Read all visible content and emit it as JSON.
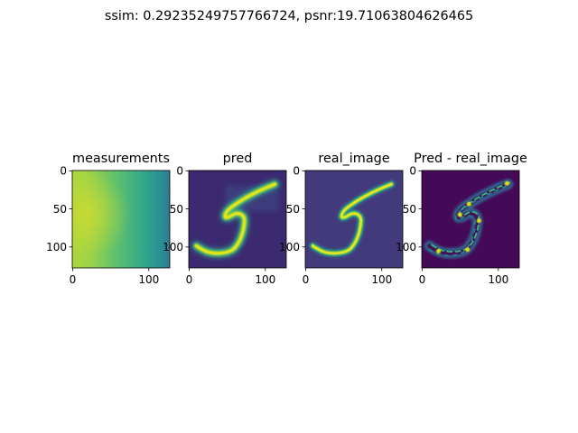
{
  "suptitle": "ssim: 0.29235249757766724, psnr:19.71063804626465",
  "chart_data": [
    {
      "type": "heatmap",
      "title": "measurements",
      "image_size": [
        128,
        128
      ],
      "xticks": [
        0,
        100
      ],
      "yticks": [
        0,
        50,
        100
      ],
      "colormap": "viridis",
      "content": "smooth gradient: bright yellow-green on left fading to teal/blue on right"
    },
    {
      "type": "heatmap",
      "title": "pred",
      "image_size": [
        128,
        128
      ],
      "xticks": [
        0,
        100
      ],
      "yticks": [
        0,
        50,
        100
      ],
      "colormap": "viridis",
      "content": "handwritten digit 5, blurred"
    },
    {
      "type": "heatmap",
      "title": "real_image",
      "image_size": [
        128,
        128
      ],
      "xticks": [
        0,
        100
      ],
      "yticks": [
        0,
        50,
        100
      ],
      "colormap": "viridis",
      "content": "handwritten digit 5"
    },
    {
      "type": "heatmap",
      "title": "Pred - real_image",
      "image_size": [
        128,
        128
      ],
      "xticks": [
        0,
        100
      ],
      "yticks": [
        0,
        50,
        100
      ],
      "colormap": "viridis",
      "content": "difference map highlighting edges of digit 5"
    }
  ]
}
